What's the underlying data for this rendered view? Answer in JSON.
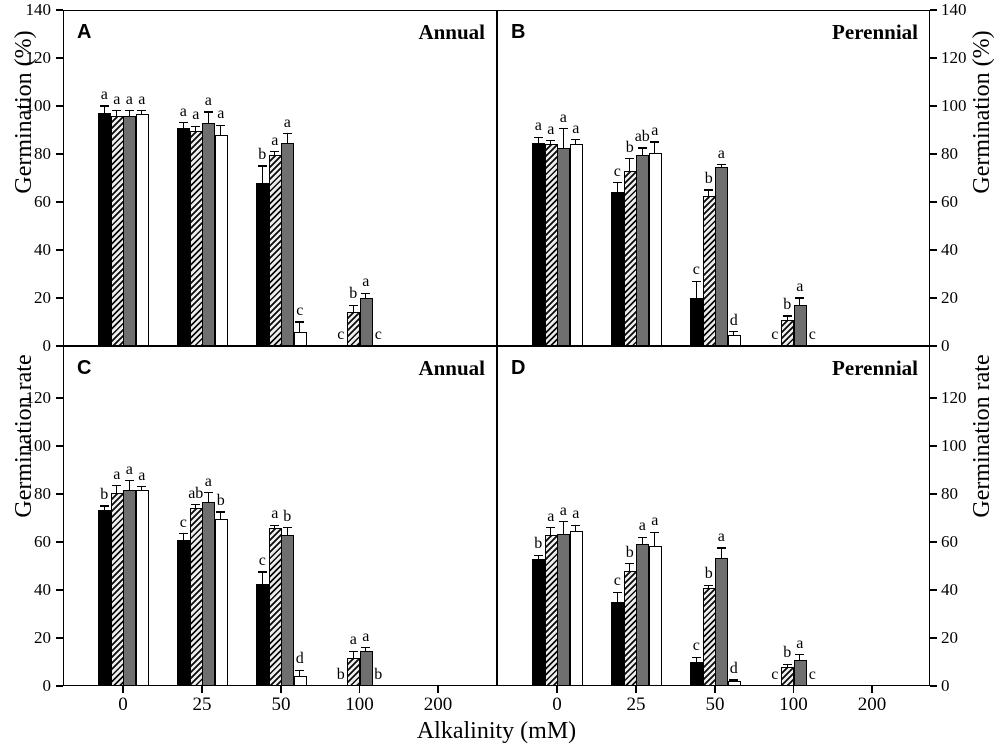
{
  "figure": {
    "xlabel": "Alkalinity (mM)",
    "categories": [
      "0",
      "25",
      "50",
      "100",
      "200"
    ],
    "series_keys": [
      "black",
      "hatched",
      "gray",
      "white"
    ],
    "colors": {
      "bar_black": "#000000",
      "bar_gray": "#6f6f6f",
      "bar_white": "#ffffff",
      "hatch_stripe": "#0a0a0a",
      "axis": "#000000",
      "background": "#ffffff"
    }
  },
  "chart_data": [
    {
      "type": "bar",
      "panel": "A",
      "title": "Annual",
      "ylabel": "Germination (%)",
      "ylabel_side": "left",
      "ylim": [
        0,
        140
      ],
      "yticks": [
        0,
        20,
        40,
        60,
        80,
        100,
        120,
        140
      ],
      "categories": [
        "0",
        "25",
        "50",
        "100",
        "200"
      ],
      "series": [
        {
          "name": "black",
          "values": [
            97,
            91,
            68,
            0,
            0
          ],
          "errors": [
            3,
            2,
            7,
            0,
            0
          ],
          "letters": [
            "a",
            "a",
            "b",
            "c",
            ""
          ]
        },
        {
          "name": "hatched",
          "values": [
            96,
            89.5,
            79.5,
            14,
            0
          ],
          "errors": [
            2,
            2,
            1.5,
            3,
            0
          ],
          "letters": [
            "a",
            "a",
            "a",
            "b",
            ""
          ]
        },
        {
          "name": "gray",
          "values": [
            96,
            93,
            84.5,
            20,
            0
          ],
          "errors": [
            2,
            4.5,
            4,
            2,
            0
          ],
          "letters": [
            "a",
            "a",
            "a",
            "a",
            ""
          ]
        },
        {
          "name": "white",
          "values": [
            96.5,
            88,
            6,
            0,
            0
          ],
          "errors": [
            1.5,
            4,
            4,
            0,
            0
          ],
          "letters": [
            "a",
            "a",
            "c",
            "c",
            ""
          ]
        }
      ]
    },
    {
      "type": "bar",
      "panel": "B",
      "title": "Perennial",
      "ylabel": "Germination (%)",
      "ylabel_side": "right",
      "ylim": [
        0,
        140
      ],
      "yticks": [
        0,
        20,
        40,
        60,
        80,
        100,
        120,
        140
      ],
      "categories": [
        "0",
        "25",
        "50",
        "100",
        "200"
      ],
      "series": [
        {
          "name": "black",
          "values": [
            84.5,
            64,
            20,
            0,
            0
          ],
          "errors": [
            2.5,
            4,
            7,
            0,
            0
          ],
          "letters": [
            "a",
            "c",
            "c",
            "c",
            ""
          ]
        },
        {
          "name": "hatched",
          "values": [
            84,
            73,
            62.5,
            11,
            0
          ],
          "errors": [
            1.5,
            5,
            2.5,
            1.5,
            0
          ],
          "letters": [
            "a",
            "b",
            "b",
            "b",
            ""
          ]
        },
        {
          "name": "gray",
          "values": [
            82.5,
            79.5,
            74.5,
            17,
            0
          ],
          "errors": [
            8,
            3,
            1,
            3,
            0
          ],
          "letters": [
            "a",
            "ab",
            "a",
            "a",
            ""
          ]
        },
        {
          "name": "white",
          "values": [
            84,
            80.5,
            4.5,
            0,
            0
          ],
          "errors": [
            2,
            4.5,
            1.5,
            0,
            0
          ],
          "letters": [
            "a",
            "a",
            "d",
            "c",
            ""
          ]
        }
      ]
    },
    {
      "type": "bar",
      "panel": "C",
      "title": "Annual",
      "ylabel": "Germination rate",
      "ylabel_side": "left",
      "ylim": [
        0,
        140
      ],
      "yticks": [
        0,
        20,
        40,
        60,
        80,
        100,
        120
      ],
      "categories": [
        "0",
        "25",
        "50",
        "100",
        "200"
      ],
      "series": [
        {
          "name": "black",
          "values": [
            73.5,
            61,
            42.5,
            0,
            0
          ],
          "errors": [
            1.5,
            2.5,
            5,
            0,
            0
          ],
          "letters": [
            "b",
            "c",
            "c",
            "b",
            ""
          ]
        },
        {
          "name": "hatched",
          "values": [
            80.5,
            74,
            66,
            11.5,
            0
          ],
          "errors": [
            3,
            1.5,
            1,
            3,
            0
          ],
          "letters": [
            "a",
            "ab",
            "a",
            "a",
            ""
          ]
        },
        {
          "name": "gray",
          "values": [
            81.5,
            76.5,
            63,
            14.5,
            0
          ],
          "errors": [
            4,
            4,
            3,
            1.5,
            0
          ],
          "letters": [
            "a",
            "a",
            "b",
            "a",
            ""
          ]
        },
        {
          "name": "white",
          "values": [
            81.5,
            69.5,
            4,
            0,
            0
          ],
          "errors": [
            1.5,
            3,
            2.5,
            0,
            0
          ],
          "letters": [
            "a",
            "b",
            "d",
            "b",
            ""
          ]
        }
      ]
    },
    {
      "type": "bar",
      "panel": "D",
      "title": "Perennial",
      "ylabel": "Germination rate",
      "ylabel_side": "right",
      "ylim": [
        0,
        140
      ],
      "yticks": [
        0,
        20,
        40,
        60,
        80,
        100,
        120
      ],
      "categories": [
        "0",
        "25",
        "50",
        "100",
        "200"
      ],
      "series": [
        {
          "name": "black",
          "values": [
            53,
            35,
            10,
            0,
            0
          ],
          "errors": [
            1.5,
            4,
            2,
            0,
            0
          ],
          "letters": [
            "b",
            "c",
            "c",
            "c",
            ""
          ]
        },
        {
          "name": "hatched",
          "values": [
            63,
            48,
            41,
            8,
            0
          ],
          "errors": [
            3,
            3,
            1,
            1,
            0
          ],
          "letters": [
            "a",
            "b",
            "b",
            "b",
            ""
          ]
        },
        {
          "name": "gray",
          "values": [
            63.5,
            59,
            53.5,
            11,
            0
          ],
          "errors": [
            5,
            3,
            4,
            2,
            0
          ],
          "letters": [
            "a",
            "a",
            "a",
            "a",
            ""
          ]
        },
        {
          "name": "white",
          "values": [
            64.5,
            58.5,
            2,
            0,
            0
          ],
          "errors": [
            2.5,
            5.5,
            0.5,
            0,
            0
          ],
          "letters": [
            "a",
            "a",
            "d",
            "c",
            ""
          ]
        }
      ]
    }
  ]
}
